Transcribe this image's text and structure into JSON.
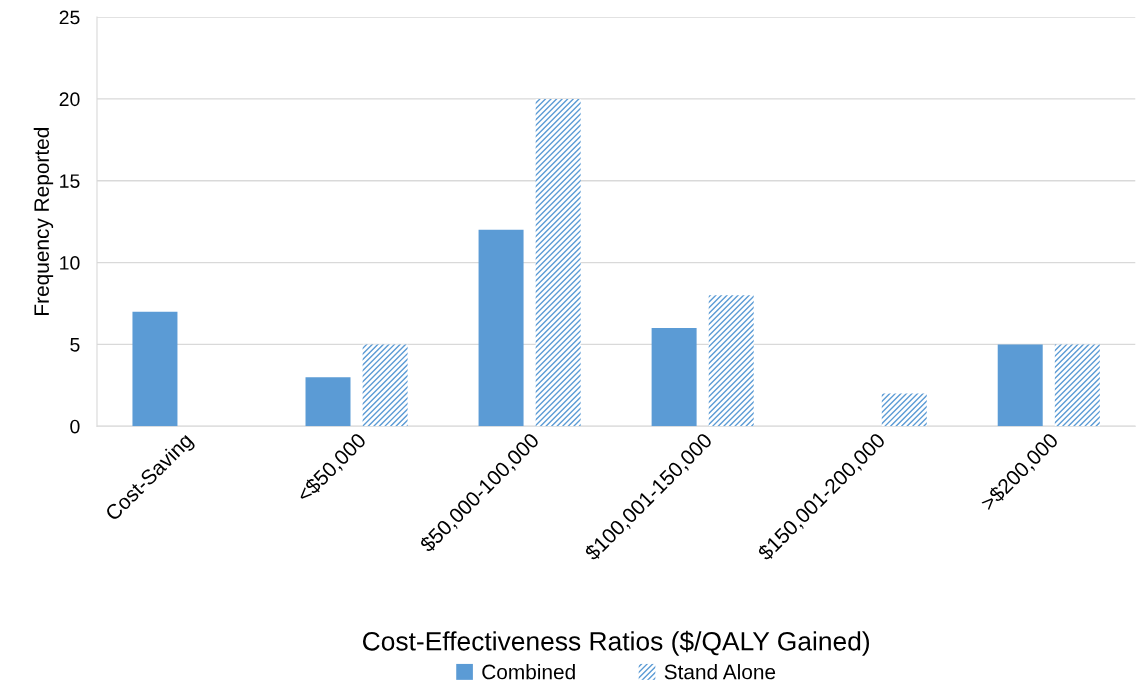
{
  "chart_data": {
    "type": "bar",
    "xlabel": "Cost-Effectiveness Ratios ($/QALY Gained)",
    "ylabel": "Frequency Reported",
    "categories": [
      "Cost-Saving",
      "<$50,000",
      "$50,000-100,000",
      "$100,001-150,000",
      "$150,001-200,000",
      ">$200,000"
    ],
    "series": [
      {
        "name": "Combined",
        "color": "#5b9bd5",
        "values": [
          7,
          3,
          12,
          6,
          0,
          5
        ]
      },
      {
        "name": "Stand Alone",
        "color": "#5b9bd5",
        "values": [
          0,
          5,
          20,
          8,
          2,
          5
        ]
      }
    ],
    "ylim": [
      0,
      25
    ],
    "yticks": [
      0,
      5,
      10,
      15,
      20,
      25
    ],
    "grid": "y",
    "legend": "bottom"
  }
}
